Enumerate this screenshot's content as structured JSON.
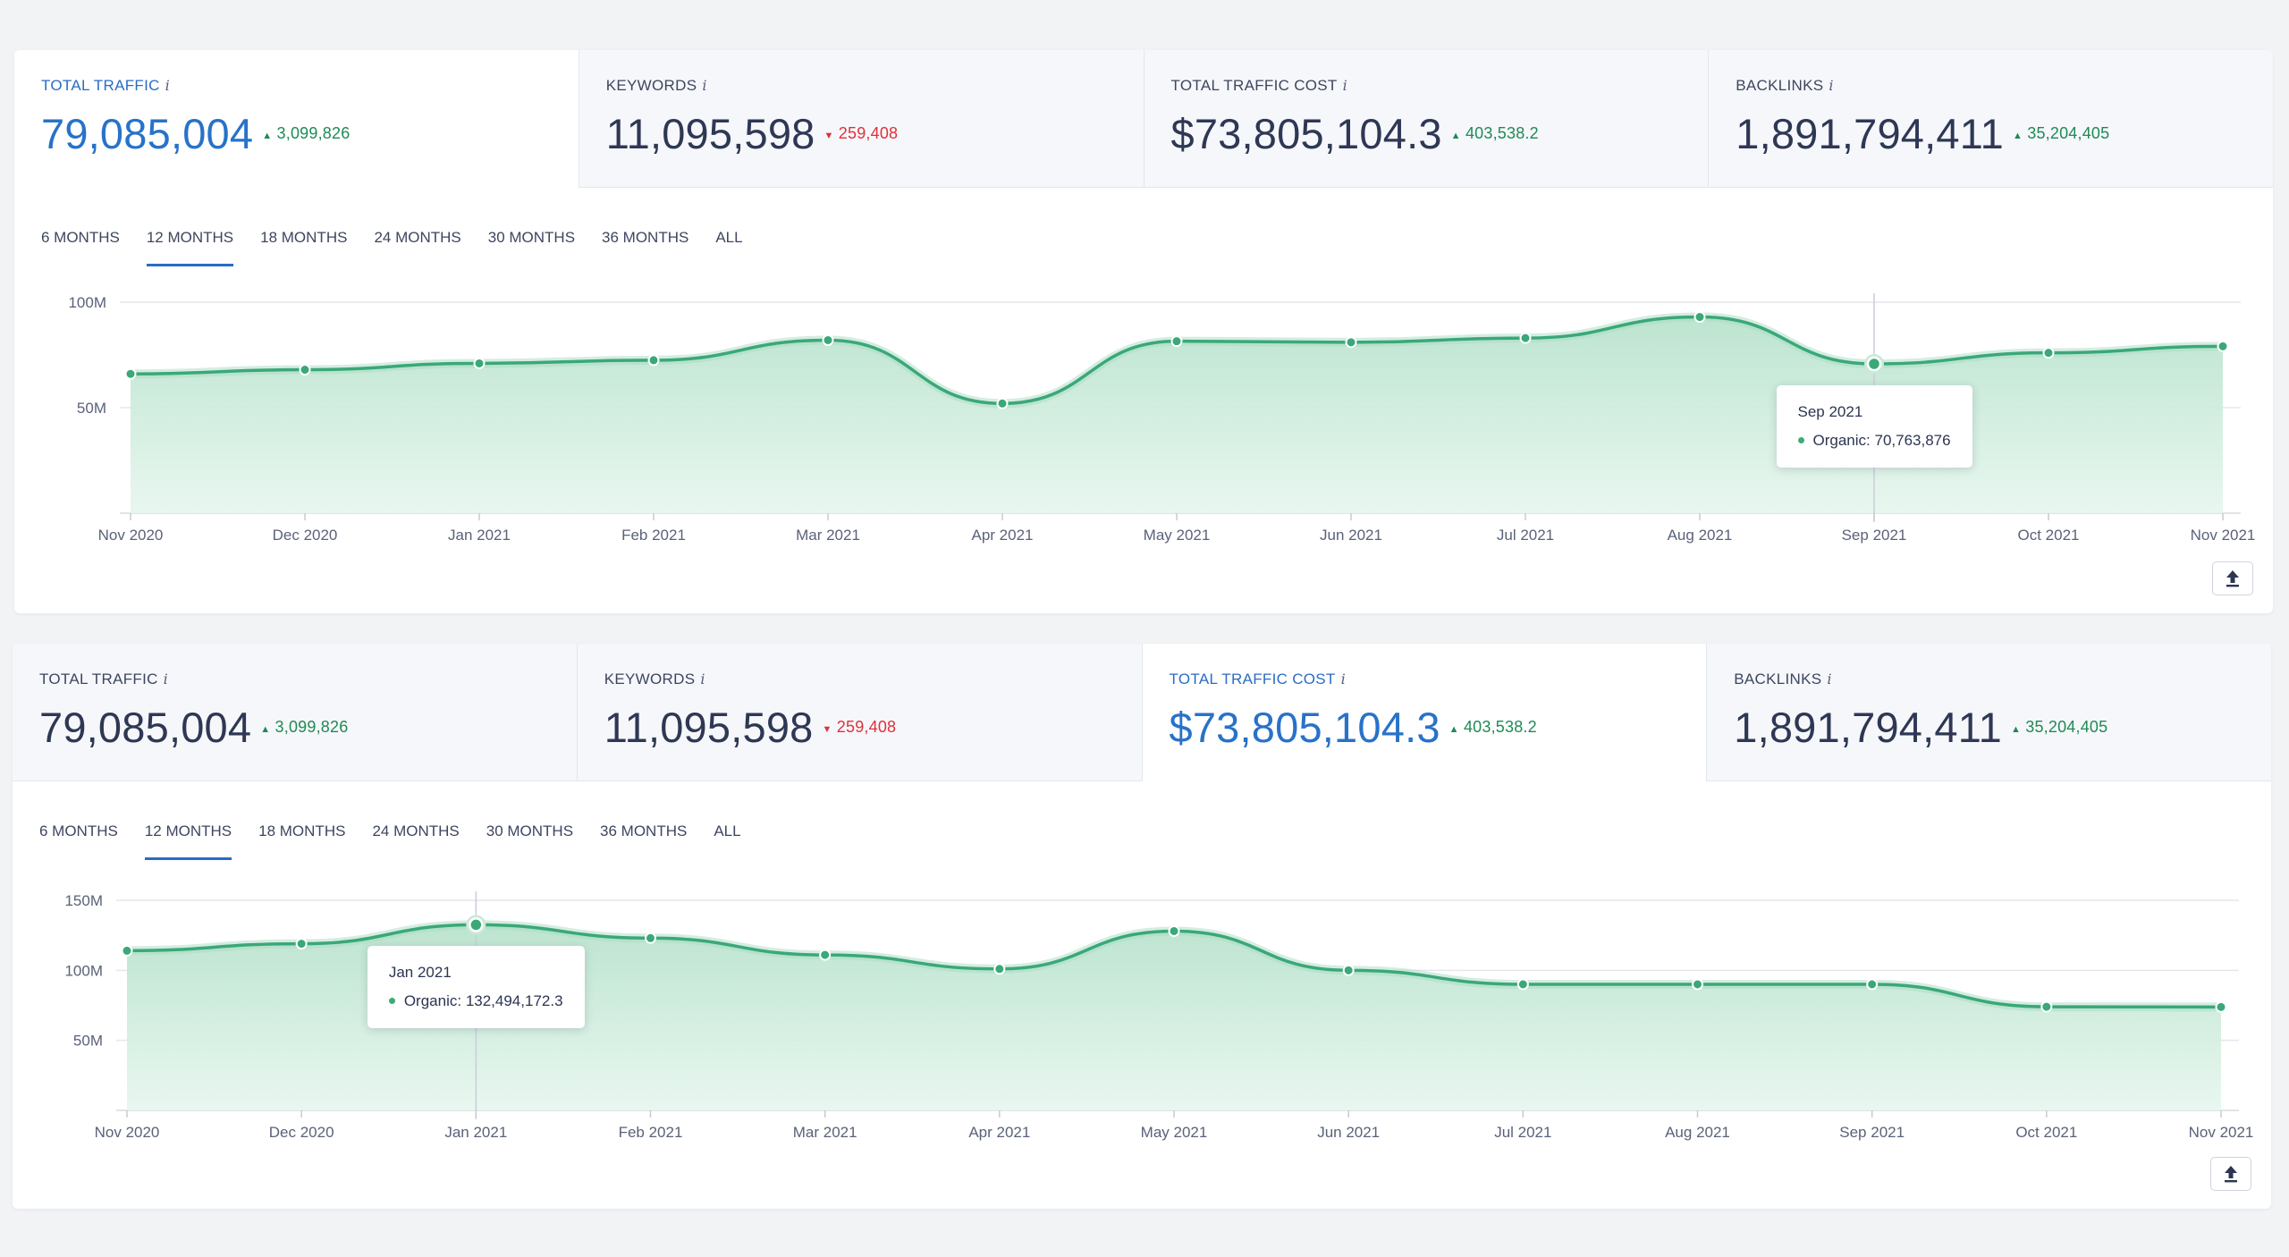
{
  "colors": {
    "line": "#3aa878",
    "fill": "#cdebdc",
    "accent": "#2a6cc4",
    "up": "#1f8a55",
    "down": "#e0303c"
  },
  "panels": [
    {
      "metrics": [
        {
          "label": "TOTAL TRAFFIC",
          "info": "i",
          "value": "79,085,004",
          "delta": "3,099,826",
          "dir": "up",
          "active": true
        },
        {
          "label": "KEYWORDS",
          "info": "i",
          "value": "11,095,598",
          "delta": "259,408",
          "dir": "down",
          "active": false
        },
        {
          "label": "TOTAL TRAFFIC COST",
          "info": "i",
          "value": "$73,805,104.3",
          "delta": "403,538.2",
          "dir": "up",
          "active": false
        },
        {
          "label": "BACKLINKS",
          "info": "i",
          "value": "1,891,794,411",
          "delta": "35,204,405",
          "dir": "up",
          "active": false
        }
      ],
      "tabs": [
        "6 MONTHS",
        "12 MONTHS",
        "18 MONTHS",
        "24 MONTHS",
        "30 MONTHS",
        "36 MONTHS",
        "ALL"
      ],
      "active_tab": "12 MONTHS",
      "tooltip": {
        "date": "Sep 2021",
        "series": "Organic",
        "value": "70,763,876"
      }
    },
    {
      "metrics": [
        {
          "label": "TOTAL TRAFFIC",
          "info": "i",
          "value": "79,085,004",
          "delta": "3,099,826",
          "dir": "up",
          "active": false
        },
        {
          "label": "KEYWORDS",
          "info": "i",
          "value": "11,095,598",
          "delta": "259,408",
          "dir": "down",
          "active": false
        },
        {
          "label": "TOTAL TRAFFIC COST",
          "info": "i",
          "value": "$73,805,104.3",
          "delta": "403,538.2",
          "dir": "up",
          "active": true
        },
        {
          "label": "BACKLINKS",
          "info": "i",
          "value": "1,891,794,411",
          "delta": "35,204,405",
          "dir": "up",
          "active": false
        }
      ],
      "tabs": [
        "6 MONTHS",
        "12 MONTHS",
        "18 MONTHS",
        "24 MONTHS",
        "30 MONTHS",
        "36 MONTHS",
        "ALL"
      ],
      "active_tab": "12 MONTHS",
      "tooltip": {
        "date": "Jan 2021",
        "series": "Organic",
        "value": "132,494,172.3"
      }
    }
  ],
  "chart_data": [
    {
      "type": "area",
      "title": "",
      "x": [
        "Nov 2020",
        "Dec 2020",
        "Jan 2021",
        "Feb 2021",
        "Mar 2021",
        "Apr 2021",
        "May 2021",
        "Jun 2021",
        "Jul 2021",
        "Aug 2021",
        "Sep 2021",
        "Oct 2021",
        "Nov 2021"
      ],
      "series": [
        {
          "name": "Organic",
          "values": [
            66000000,
            68000000,
            71000000,
            72500000,
            82000000,
            52000000,
            81500000,
            81000000,
            83000000,
            93000000,
            70763876,
            76000000,
            79085004
          ]
        }
      ],
      "ylim": [
        0,
        100000000
      ],
      "yticks": [
        "50M",
        "100M"
      ],
      "grid": true,
      "highlight_index": 10
    },
    {
      "type": "area",
      "title": "",
      "x": [
        "Nov 2020",
        "Dec 2020",
        "Jan 2021",
        "Feb 2021",
        "Mar 2021",
        "Apr 2021",
        "May 2021",
        "Jun 2021",
        "Jul 2021",
        "Aug 2021",
        "Sep 2021",
        "Oct 2021",
        "Nov 2021"
      ],
      "series": [
        {
          "name": "Organic",
          "values": [
            114000000,
            119000000,
            132494172.3,
            123000000,
            111000000,
            101000000,
            128000000,
            100000000,
            90000000,
            90000000,
            90000000,
            74000000,
            73805104.3
          ]
        }
      ],
      "ylim": [
        0,
        150000000
      ],
      "yticks": [
        "50M",
        "100M",
        "150M"
      ],
      "grid": true,
      "highlight_index": 2
    }
  ]
}
